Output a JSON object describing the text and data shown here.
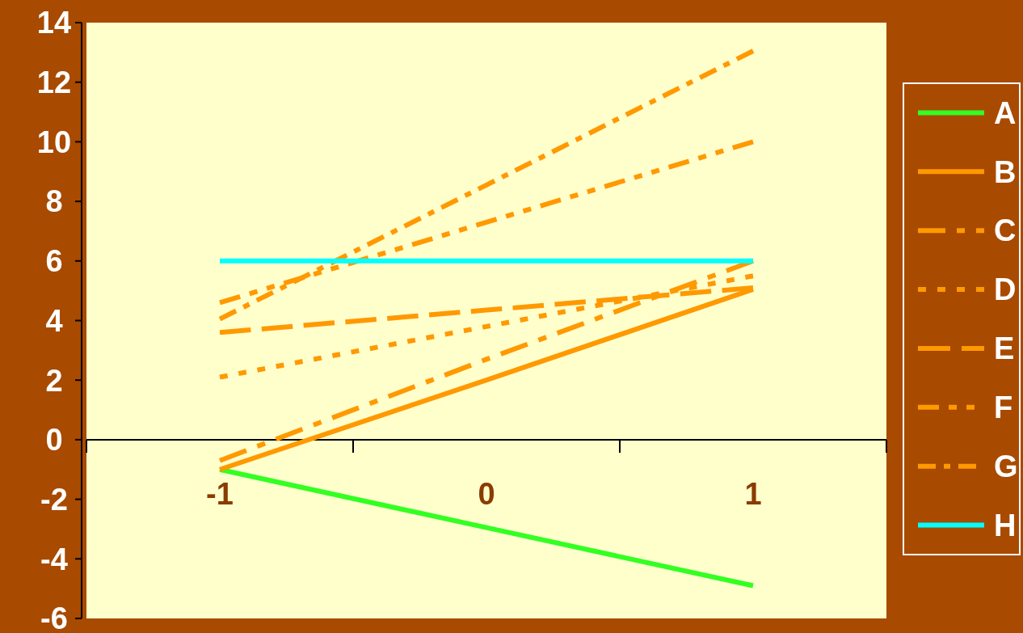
{
  "chart_data": {
    "type": "line",
    "categories": [
      "-1",
      "0",
      "1"
    ],
    "ylim": [
      -6,
      14
    ],
    "yticks": [
      -6,
      -4,
      -2,
      0,
      2,
      4,
      6,
      8,
      10,
      12,
      14
    ],
    "grid": false,
    "legend": "right",
    "marker": "none",
    "series": [
      {
        "name": "A",
        "color": "#33ff22",
        "line_style": "solid",
        "values": [
          -1,
          -2.95,
          -4.9
        ]
      },
      {
        "name": "B",
        "color": "#ff9900",
        "line_style": "solid",
        "values": [
          -1,
          2,
          5.05
        ]
      },
      {
        "name": "C",
        "color": "#ff9900",
        "line_style": "dashed",
        "values": [
          -0.7,
          2.7,
          6
        ]
      },
      {
        "name": "D",
        "color": "#ff9900",
        "line_style": "dotted",
        "values": [
          2.1,
          3.8,
          5.5
        ]
      },
      {
        "name": "E",
        "color": "#ff9900",
        "line_style": "dashed",
        "values": [
          3.6,
          4.35,
          5.1
        ]
      },
      {
        "name": "F",
        "color": "#ff9900",
        "line_style": "dashed",
        "values": [
          4.6,
          7.3,
          10
        ]
      },
      {
        "name": "G",
        "color": "#ff9900",
        "line_style": "dashed",
        "values": [
          4.05,
          8.55,
          13.05
        ]
      },
      {
        "name": "H",
        "color": "#00ffff",
        "line_style": "solid",
        "values": [
          6,
          6,
          6
        ]
      }
    ]
  }
}
